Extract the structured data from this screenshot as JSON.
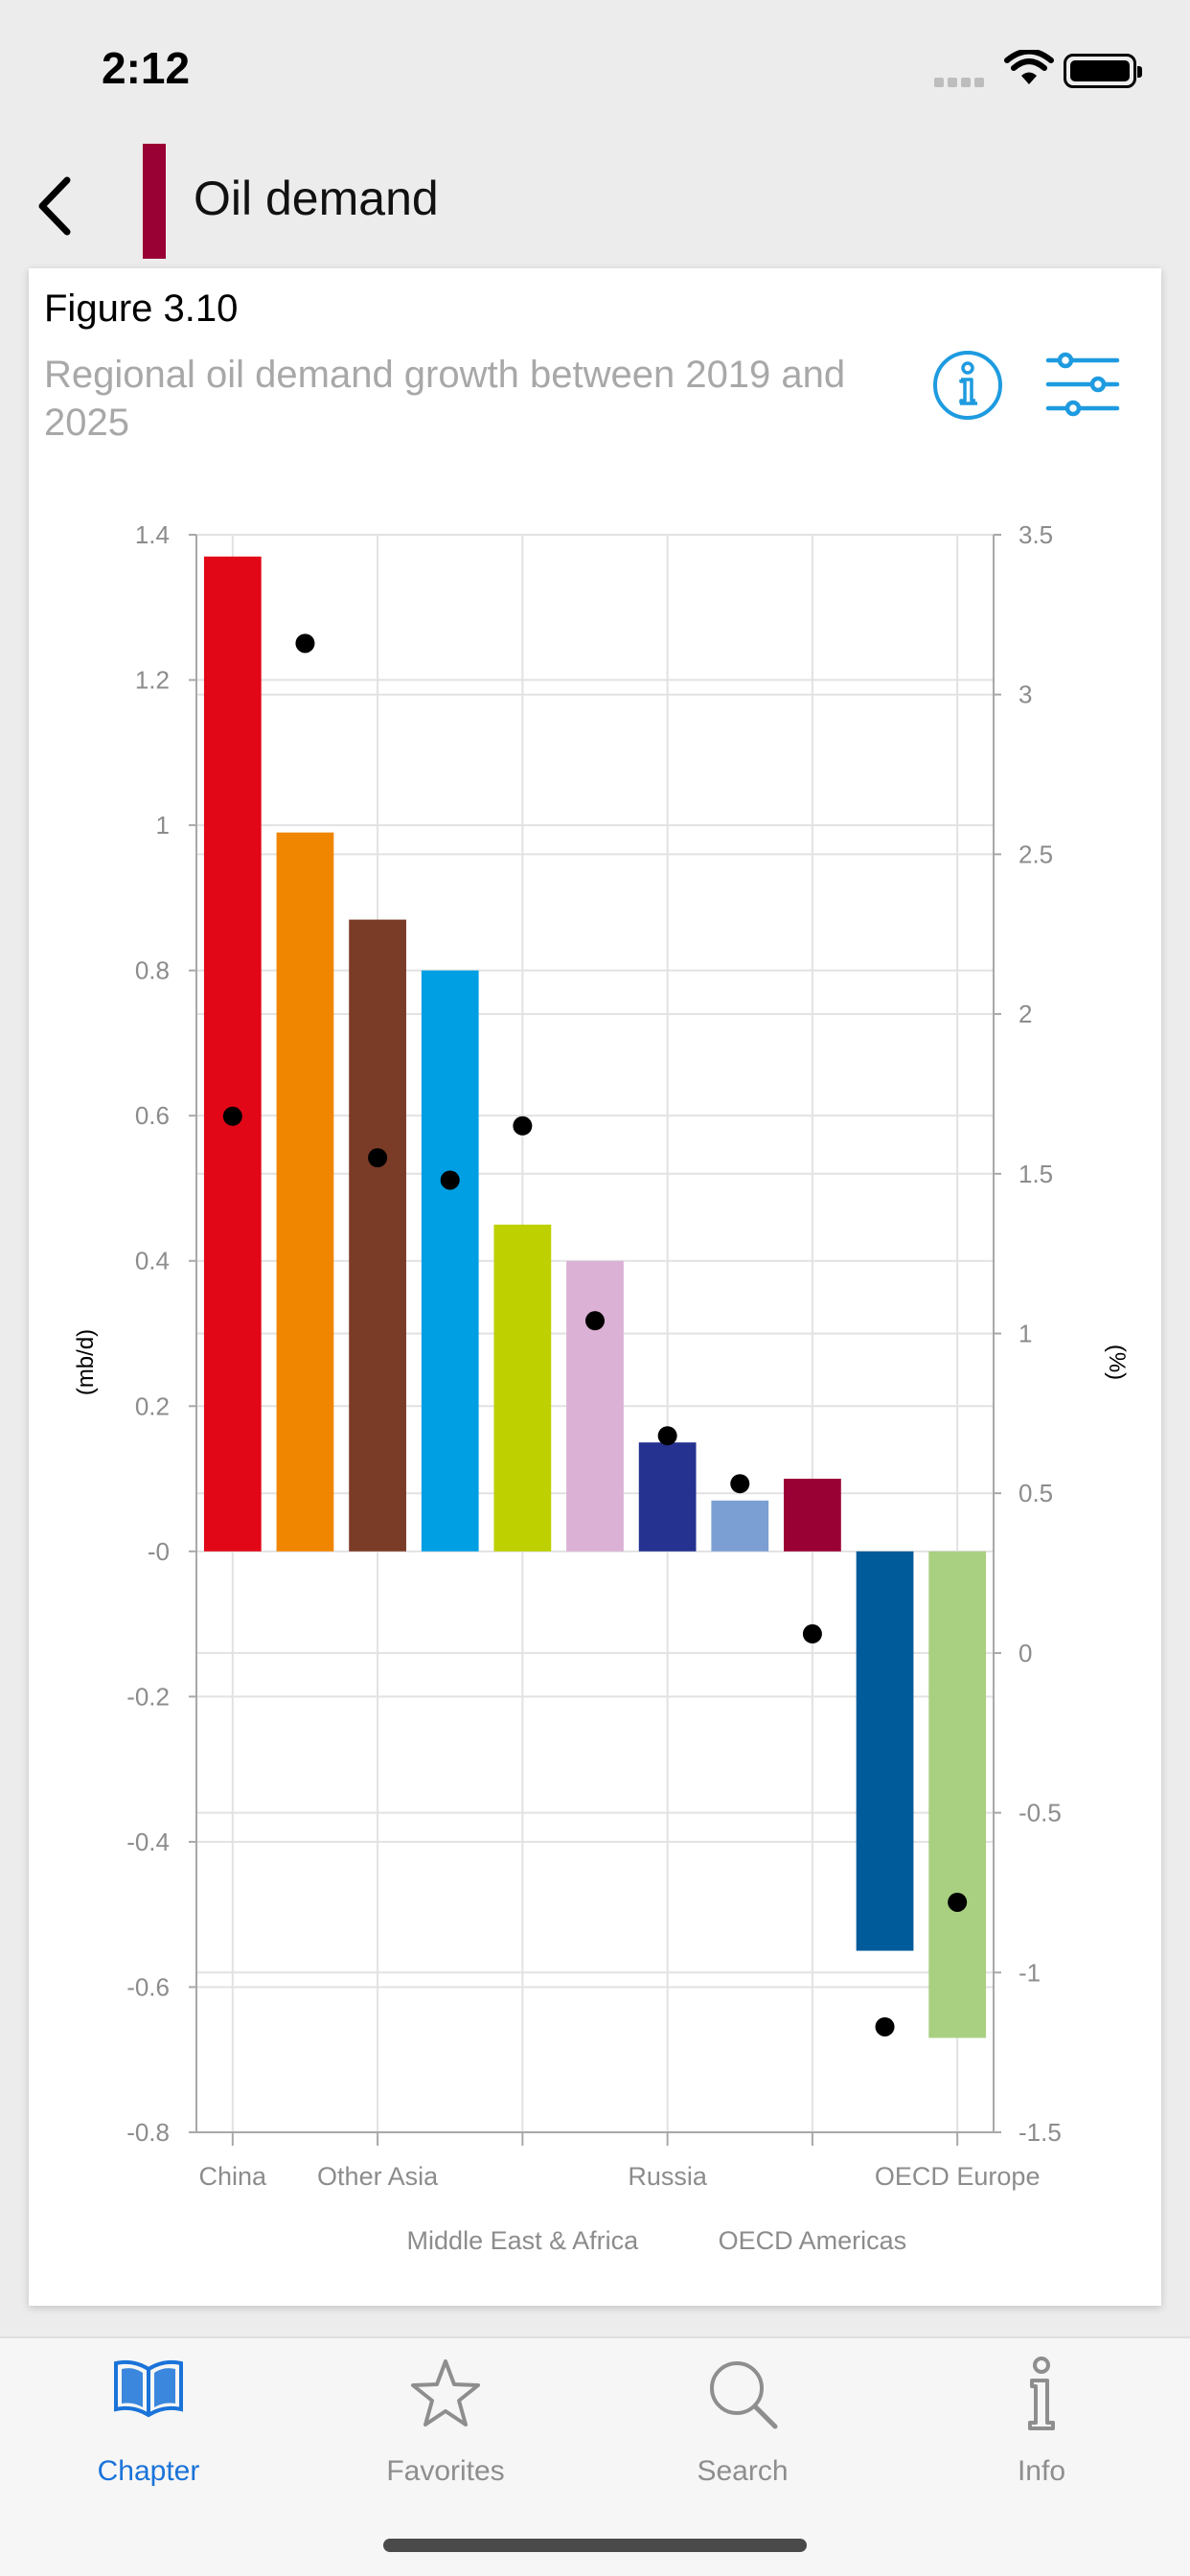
{
  "status": {
    "time": "2:12"
  },
  "header": {
    "title": "Oil demand",
    "accent_color": "#990033"
  },
  "figure": {
    "label": "Figure 3.10",
    "title": "Regional oil demand growth between 2019 and 2025"
  },
  "chart_data": {
    "type": "bar",
    "title": "Regional oil demand growth between 2019 and 2025",
    "ylabel": "(mb/d)",
    "y2label": "(%)",
    "ylim": [
      -0.8,
      1.4
    ],
    "y2lim": [
      -1.5,
      3.5
    ],
    "yticks": [
      "1.4",
      "1.2",
      "1",
      "0.8",
      "0.6",
      "0.4",
      "0.2",
      "-0",
      "-0.2",
      "-0.4",
      "-0.6",
      "-0.8"
    ],
    "y2ticks": [
      "3.5",
      "3",
      "2.5",
      "2",
      "1.5",
      "1",
      "0.5",
      "0",
      "-0.5",
      "-1",
      "-1.5"
    ],
    "x_labels_row1": [
      "China",
      "Other Asia",
      "Russia",
      "OECD Europe"
    ],
    "x_labels_row2": [
      "Middle East & Africa",
      "OECD Americas"
    ],
    "grid": true,
    "series": [
      {
        "type": "bar",
        "axis": "left",
        "values": [
          1.37,
          0.99,
          0.87,
          0.8,
          0.45,
          0.4,
          0.15,
          0.07,
          0.1,
          -0.55,
          -0.67
        ],
        "colors": [
          "#e10717",
          "#f08600",
          "#7b3c27",
          "#009fe3",
          "#bed000",
          "#dbb1d6",
          "#253290",
          "#7b9fd2",
          "#990033",
          "#005b9a",
          "#a8d080"
        ]
      },
      {
        "type": "scatter",
        "axis": "right",
        "values": [
          1.68,
          3.16,
          1.55,
          1.48,
          1.65,
          1.04,
          0.68,
          0.53,
          0.06,
          -1.17,
          -0.78
        ]
      }
    ]
  },
  "tabs": [
    {
      "label": "Chapter",
      "icon": "book-icon",
      "active": true
    },
    {
      "label": "Favorites",
      "icon": "star-icon",
      "active": false
    },
    {
      "label": "Search",
      "icon": "search-icon",
      "active": false
    },
    {
      "label": "Info",
      "icon": "info-icon",
      "active": false
    }
  ],
  "colors": {
    "active_tab": "#1a73d9",
    "inactive_tab": "#8e8e8e",
    "info_blue": "#1e9be0"
  }
}
